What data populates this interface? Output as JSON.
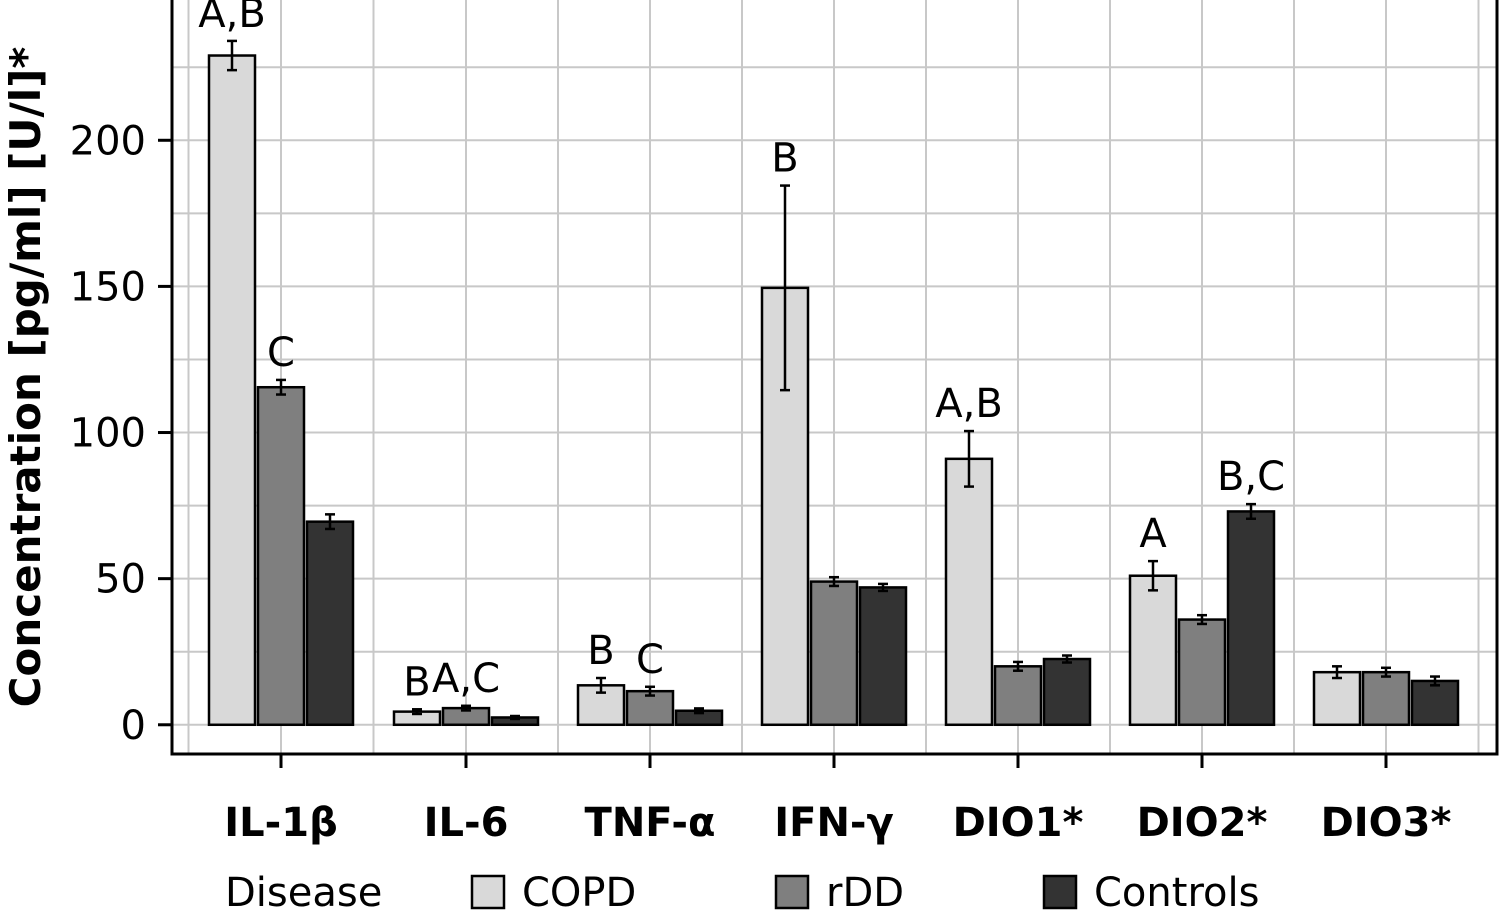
{
  "chart_data": {
    "type": "bar",
    "ylabel": "Concentration [pg/ml] [U/l]*",
    "ylim": [
      -10,
      248
    ],
    "yticks": [
      0,
      50,
      100,
      150,
      200
    ],
    "grid": true,
    "categories": [
      "IL-1β",
      "IL-6",
      "TNF-α",
      "IFN-γ",
      "DIO1*",
      "DIO2*",
      "DIO3*"
    ],
    "series": [
      {
        "name": "COPD",
        "color": "#d9d9d9",
        "values": [
          229,
          4.5,
          13.5,
          149.5,
          91,
          51,
          18
        ],
        "errors": [
          5,
          0.8,
          2.5,
          35,
          9.5,
          5,
          2
        ],
        "labels": [
          "A,B",
          "B",
          "B",
          "B",
          "A,B",
          "A",
          ""
        ]
      },
      {
        "name": "rDD",
        "color": "#7f7f7f",
        "values": [
          115.5,
          5.7,
          11.5,
          49,
          20,
          36,
          18
        ],
        "errors": [
          2.5,
          0.8,
          1.5,
          1.5,
          1.5,
          1.5,
          1.5
        ],
        "labels": [
          "C",
          "A,C",
          "C",
          "",
          "",
          "",
          ""
        ]
      },
      {
        "name": "Controls",
        "color": "#333333",
        "values": [
          69.5,
          2.5,
          4.8,
          47,
          22.5,
          73,
          15
        ],
        "errors": [
          2.5,
          0.5,
          0.8,
          1.2,
          1.2,
          2.5,
          1.5
        ],
        "labels": [
          "",
          "",
          "",
          "",
          "",
          "B,C",
          ""
        ]
      }
    ],
    "legend": {
      "title": "Disease",
      "placement": "bottom",
      "entries": [
        "COPD",
        "rDD",
        "Controls"
      ]
    }
  }
}
